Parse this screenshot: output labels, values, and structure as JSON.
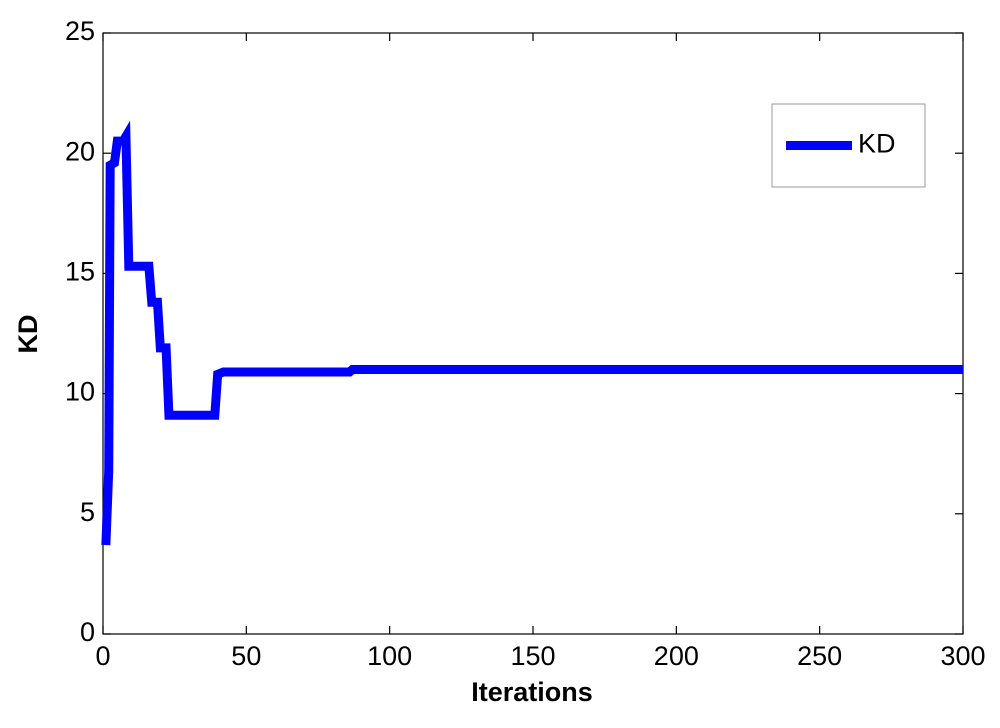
{
  "chart_data": {
    "type": "line",
    "x_label": "Iterations",
    "y_label": "KD",
    "x": [
      1,
      2,
      2.5,
      4,
      5,
      7,
      8,
      9,
      16,
      17,
      19,
      20,
      22,
      23,
      39,
      40,
      42,
      86,
      87,
      300
    ],
    "series": [
      {
        "name": "KD",
        "color": "#0000ff",
        "values": [
          3.7,
          6.8,
          19.5,
          19.6,
          20.5,
          20.5,
          20.7,
          15.3,
          15.3,
          13.8,
          13.8,
          11.9,
          11.9,
          9.1,
          9.1,
          10.8,
          10.9,
          10.9,
          11.0,
          11.0
        ]
      }
    ],
    "xlim": [
      0,
      300
    ],
    "ylim": [
      0,
      25
    ],
    "xticks": [
      0,
      50,
      100,
      150,
      200,
      250,
      300
    ],
    "yticks": [
      0,
      5,
      10,
      15,
      20,
      25
    ],
    "grid": false,
    "legend_position": "upper right"
  }
}
